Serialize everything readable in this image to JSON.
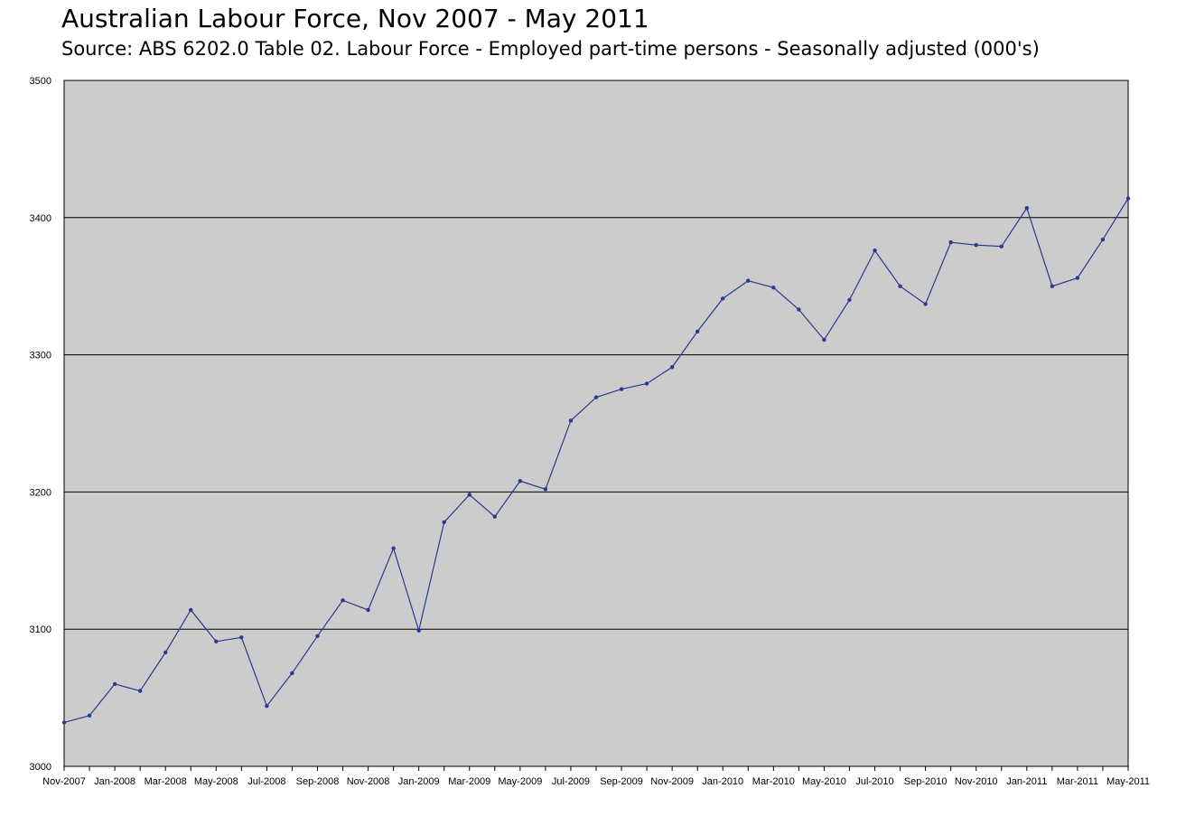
{
  "chart_data": {
    "type": "line",
    "title": "Australian Labour Force, Nov 2007 - May 2011",
    "subtitle": "Source: ABS 6202.0 Table 02. Labour Force - Employed part-time persons - Seasonally adjusted  (000's)",
    "xlabel": "",
    "ylabel": "",
    "ylim": [
      3000,
      3500
    ],
    "yticks": [
      3000,
      3100,
      3200,
      3300,
      3400,
      3500
    ],
    "grid": true,
    "legend": "none",
    "colors": {
      "line": "#2a3a8c",
      "plot_bg": "#cccccc",
      "grid": "#000000"
    },
    "x": [
      "Nov-2007",
      "Dec-2007",
      "Jan-2008",
      "Feb-2008",
      "Mar-2008",
      "Apr-2008",
      "May-2008",
      "Jun-2008",
      "Jul-2008",
      "Aug-2008",
      "Sep-2008",
      "Oct-2008",
      "Nov-2008",
      "Dec-2008",
      "Jan-2009",
      "Feb-2009",
      "Mar-2009",
      "Apr-2009",
      "May-2009",
      "Jun-2009",
      "Jul-2009",
      "Aug-2009",
      "Sep-2009",
      "Oct-2009",
      "Nov-2009",
      "Dec-2009",
      "Jan-2010",
      "Feb-2010",
      "Mar-2010",
      "Apr-2010",
      "May-2010",
      "Jun-2010",
      "Jul-2010",
      "Aug-2010",
      "Sep-2010",
      "Oct-2010",
      "Nov-2010",
      "Dec-2010",
      "Jan-2011",
      "Feb-2011",
      "Mar-2011",
      "Apr-2011",
      "May-2011"
    ],
    "x_tick_labels": [
      "Nov-2007",
      "Jan-2008",
      "Mar-2008",
      "May-2008",
      "Jul-2008",
      "Sep-2008",
      "Nov-2008",
      "Jan-2009",
      "Mar-2009",
      "May-2009",
      "Jul-2009",
      "Sep-2009",
      "Nov-2009",
      "Jan-2010",
      "Mar-2010",
      "May-2010",
      "Jul-2010",
      "Sep-2010",
      "Nov-2010",
      "Jan-2011",
      "Mar-2011",
      "May-2011"
    ],
    "series": [
      {
        "values": [
          3032,
          3037,
          3060,
          3055,
          3083,
          3114,
          3091,
          3094,
          3044,
          3068,
          3095,
          3121,
          3114,
          3159,
          3099,
          3178,
          3198,
          3182,
          3208,
          3202,
          3252,
          3269,
          3275,
          3279,
          3291,
          3317,
          3341,
          3354,
          3349,
          3333,
          3311,
          3340,
          3376,
          3350,
          3337,
          3382,
          3380,
          3379,
          3407,
          3350,
          3356,
          3384,
          3414
        ]
      }
    ]
  }
}
